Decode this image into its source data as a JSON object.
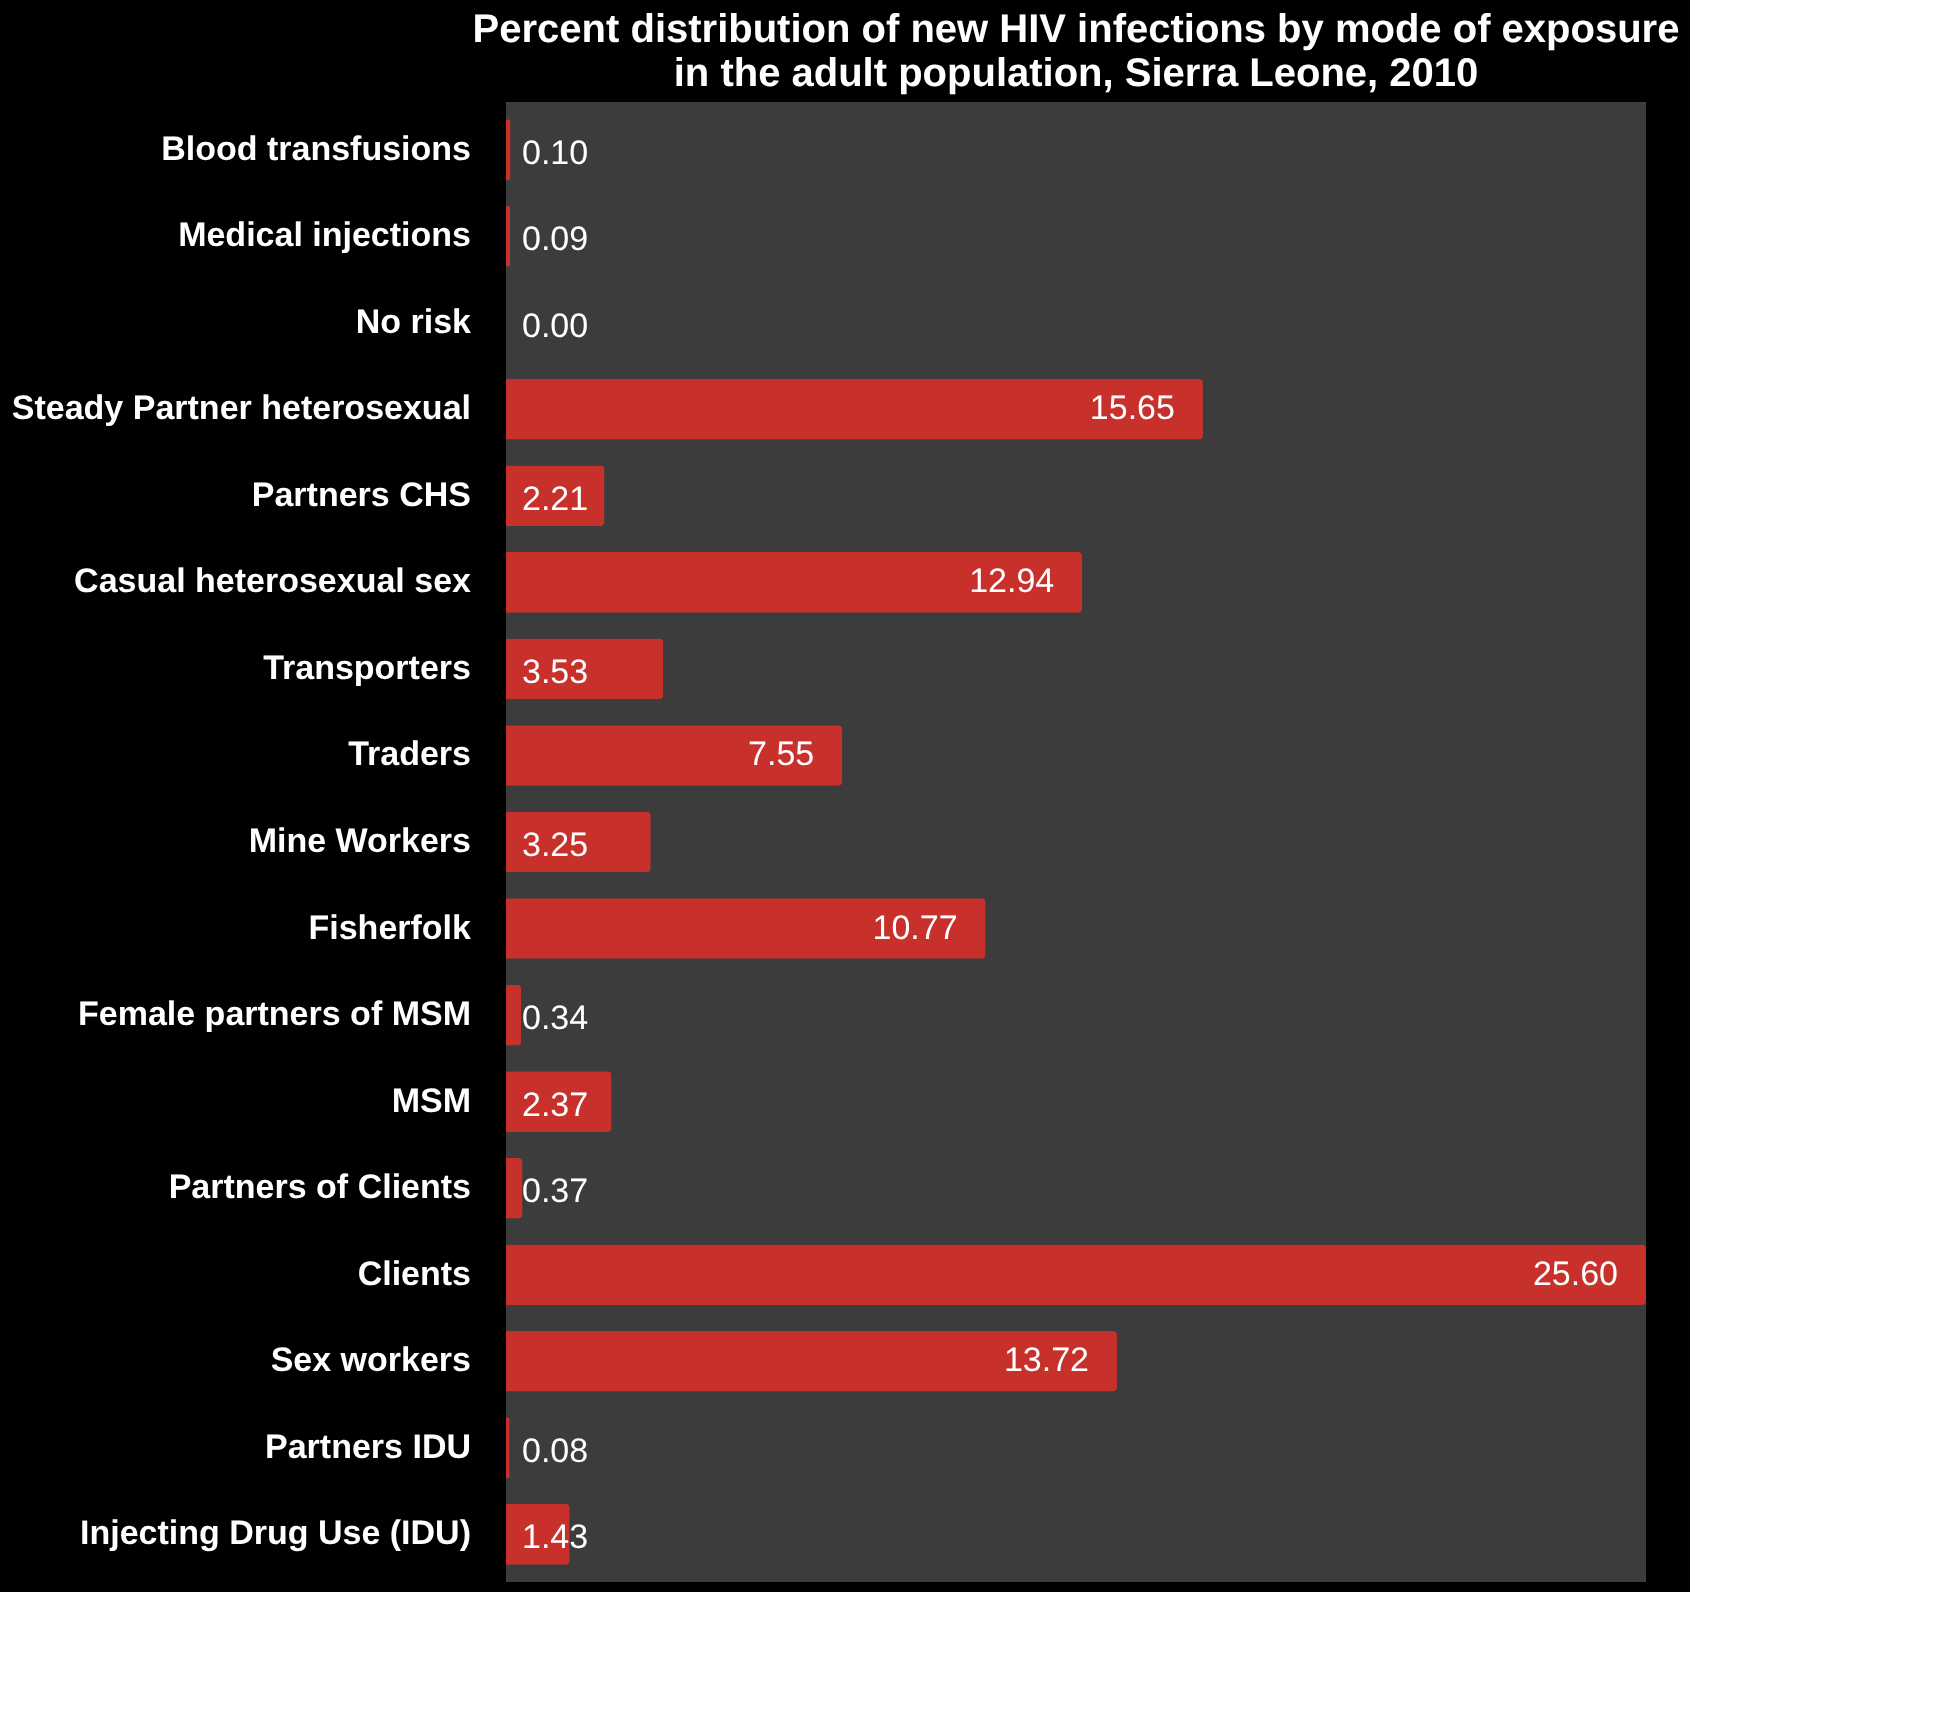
{
  "chart_data": {
    "type": "bar",
    "orientation": "horizontal",
    "title": "Percent distribution of new HIV infections by mode of exposure in the adult population, Sierra Leone, 2010",
    "categories": [
      "Blood transfusions",
      "Medical injections",
      "No risk",
      "Steady Partner heterosexual",
      "Partners CHS",
      "Casual heterosexual sex",
      "Transporters",
      "Traders",
      "Mine Workers",
      "Fisherfolk",
      "Female partners of MSM",
      "MSM",
      "Partners of Clients",
      "Clients",
      "Sex workers",
      "Partners IDU",
      "Injecting Drug Use (IDU)"
    ],
    "values": [
      0.1,
      0.09,
      0.0,
      15.65,
      2.21,
      12.94,
      3.53,
      7.55,
      3.25,
      10.77,
      0.34,
      2.37,
      0.37,
      25.6,
      13.72,
      0.08,
      1.43
    ],
    "value_labels": [
      "0.10",
      "0.09",
      "0.00",
      "15.65",
      "2.21",
      "12.94",
      "3.53",
      "7.55",
      "3.25",
      "10.77",
      "0.34",
      "2.37",
      "0.37",
      "25.60",
      "13.72",
      "0.08",
      "1.43"
    ],
    "color": "#c8302c",
    "xlim": [
      0,
      25.6
    ]
  }
}
